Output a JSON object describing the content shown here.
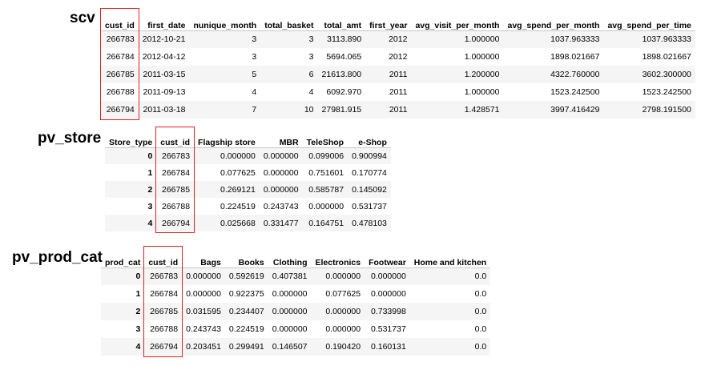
{
  "scv": {
    "label": "scv",
    "columns": [
      "cust_id",
      "first_date",
      "nunique_month",
      "total_basket",
      "total_amt",
      "first_year",
      "avg_visit_per_month",
      "avg_spend_per_month",
      "avg_spend_per_time"
    ],
    "rows": [
      [
        "266783",
        "2012-10-21",
        "3",
        "3",
        "3113.890",
        "2012",
        "1.000000",
        "1037.963333",
        "1037.963333"
      ],
      [
        "266784",
        "2012-04-12",
        "3",
        "3",
        "5694.065",
        "2012",
        "1.000000",
        "1898.021667",
        "1898.021667"
      ],
      [
        "266785",
        "2011-03-15",
        "5",
        "6",
        "21613.800",
        "2011",
        "1.200000",
        "4322.760000",
        "3602.300000"
      ],
      [
        "266788",
        "2011-09-13",
        "4",
        "4",
        "6092.970",
        "2011",
        "1.000000",
        "1523.242500",
        "1523.242500"
      ],
      [
        "266794",
        "2011-03-18",
        "7",
        "10",
        "27981.915",
        "2011",
        "1.428571",
        "3997.416429",
        "2798.191500"
      ]
    ]
  },
  "pv_store": {
    "label": "pv_store",
    "index_name": "Store_type",
    "columns": [
      "cust_id",
      "Flagship store",
      "MBR",
      "TeleShop",
      "e-Shop"
    ],
    "index": [
      "0",
      "1",
      "2",
      "3",
      "4"
    ],
    "rows": [
      [
        "266783",
        "0.000000",
        "0.000000",
        "0.099006",
        "0.900994"
      ],
      [
        "266784",
        "0.077625",
        "0.000000",
        "0.751601",
        "0.170774"
      ],
      [
        "266785",
        "0.269121",
        "0.000000",
        "0.585787",
        "0.145092"
      ],
      [
        "266788",
        "0.224519",
        "0.243743",
        "0.000000",
        "0.531737"
      ],
      [
        "266794",
        "0.025668",
        "0.331477",
        "0.164751",
        "0.478103"
      ]
    ]
  },
  "pv_prod_cat": {
    "label": "pv_prod_cat",
    "index_name": "prod_cat",
    "columns": [
      "cust_id",
      "Bags",
      "Books",
      "Clothing",
      "Electronics",
      "Footwear",
      "Home and kitchen"
    ],
    "index": [
      "0",
      "1",
      "2",
      "3",
      "4"
    ],
    "rows": [
      [
        "266783",
        "0.000000",
        "0.592619",
        "0.407381",
        "0.000000",
        "0.000000",
        "0.0"
      ],
      [
        "266784",
        "0.000000",
        "0.922375",
        "0.000000",
        "0.077625",
        "0.000000",
        "0.0"
      ],
      [
        "266785",
        "0.031595",
        "0.234407",
        "0.000000",
        "0.000000",
        "0.733998",
        "0.0"
      ],
      [
        "266788",
        "0.243743",
        "0.224519",
        "0.000000",
        "0.000000",
        "0.531737",
        "0.0"
      ],
      [
        "266794",
        "0.203451",
        "0.299491",
        "0.146507",
        "0.190420",
        "0.160131",
        "0.0"
      ]
    ]
  },
  "highlight": {
    "color": "#e02020",
    "column": "cust_id"
  }
}
